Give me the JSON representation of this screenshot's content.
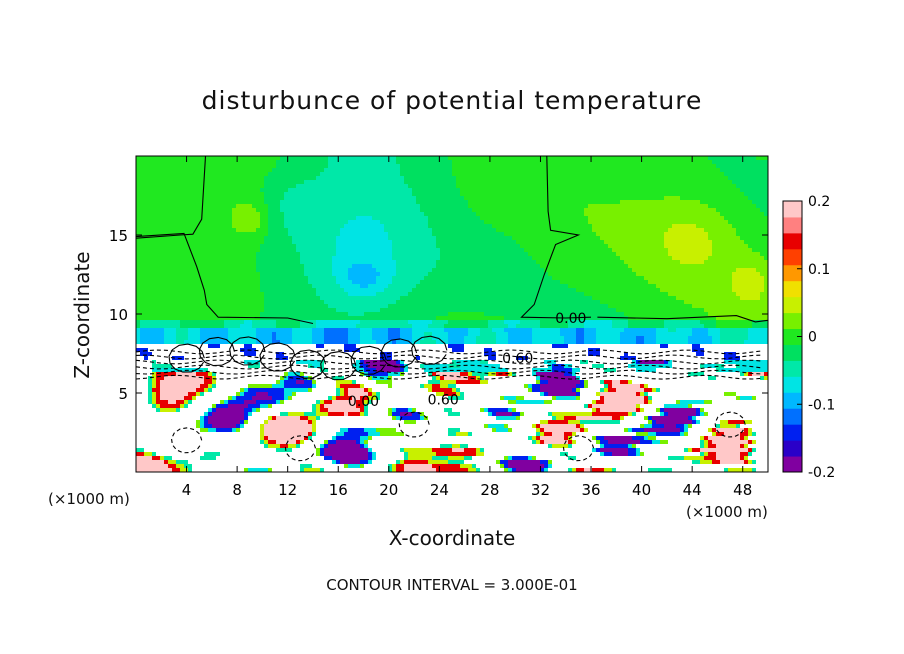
{
  "chart_data": {
    "type": "heatmap",
    "title": "disturbunce of potential temperature",
    "xlabel": "X-coordinate",
    "ylabel": "Z-coordinate",
    "x_unit_left": "(×1000 m)",
    "x_unit_right": "(×1000 m)",
    "caption": "CONTOUR INTERVAL = 3.000E-01",
    "xlim": [
      0,
      50
    ],
    "ylim": [
      0,
      20
    ],
    "xticks": [
      4,
      8,
      12,
      16,
      20,
      24,
      28,
      32,
      36,
      40,
      44,
      48
    ],
    "xtick_labels": [
      "4",
      "8",
      "12",
      "16",
      "20",
      "24",
      "28",
      "32",
      "36",
      "40",
      "44",
      "48"
    ],
    "yticks": [
      5,
      10,
      15
    ],
    "ytick_labels": [
      "5",
      "10",
      "15"
    ],
    "colorbar": {
      "min": -0.2,
      "max": 0.2,
      "ticks": [
        0.2,
        0.1,
        0,
        -0.1,
        -0.2
      ],
      "tick_labels": [
        "0.2",
        "0.1",
        "0",
        "-0.1",
        "-0.2"
      ],
      "colors": [
        "#8000a0",
        "#2a00c8",
        "#0020f0",
        "#0070ff",
        "#00b8ff",
        "#00e4e4",
        "#00e8a8",
        "#00e060",
        "#20e820",
        "#78f000",
        "#c8f000",
        "#f0e000",
        "#ff9800",
        "#ff4000",
        "#e80000",
        "#ff8080",
        "#ffc8c8"
      ]
    },
    "contour_labels": [
      {
        "text": "0.00",
        "x": 34.4,
        "z": 9.75
      },
      {
        "text": "0.60",
        "x": 30.2,
        "z": 7.2
      },
      {
        "text": "0.00",
        "x": 18.0,
        "z": 4.5
      },
      {
        "text": "0.60",
        "x": 24.3,
        "z": 4.6
      }
    ]
  }
}
